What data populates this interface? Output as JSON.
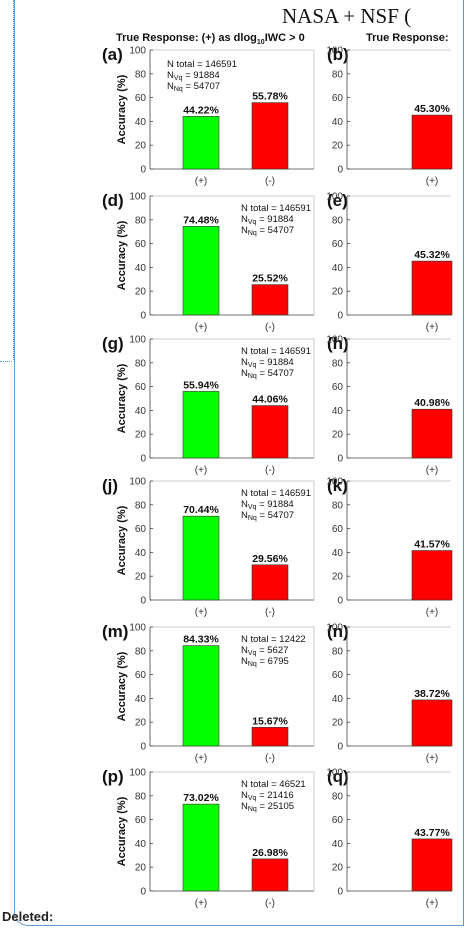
{
  "header": {
    "title": "NASA + NSF (",
    "left_column_title": "True Response: (+) as dlog",
    "left_column_title_sub": "10",
    "left_column_title_end": "IWC > 0",
    "right_column_title": "True Response:"
  },
  "footer": {
    "deleted_label": "Deleted:"
  },
  "colors": {
    "positive": "#00ff00",
    "negative": "#ff0000",
    "frame": "#5b9bd5"
  },
  "chart_data": [
    {
      "panel": "(a)",
      "type": "bar",
      "categories": [
        "(+)",
        "(-)"
      ],
      "values": [
        44.22,
        55.78
      ],
      "value_labels": [
        "44.22%",
        "55.78%"
      ],
      "ylabel": "Accuracy (%)",
      "ylim": [
        0,
        100
      ],
      "yticks": [
        0,
        20,
        40,
        60,
        80,
        100
      ],
      "annotation": [
        "N total = 146591",
        "N",
        "Vq",
        " = 91884",
        "N",
        "Nq",
        " = 54707"
      ]
    },
    {
      "panel": "(b)",
      "type": "bar",
      "categories": [
        "(+)"
      ],
      "values": [
        45.3
      ],
      "value_labels": [
        "45.30%"
      ],
      "ylim": [
        0,
        100
      ],
      "yticks": [
        0,
        20,
        40,
        60,
        80,
        100
      ]
    },
    {
      "panel": "(d)",
      "type": "bar",
      "categories": [
        "(+)",
        "(-)"
      ],
      "values": [
        74.48,
        25.52
      ],
      "value_labels": [
        "74.48%",
        "25.52%"
      ],
      "ylabel": "Accuracy (%)",
      "ylim": [
        0,
        100
      ],
      "yticks": [
        0,
        20,
        40,
        60,
        80,
        100
      ],
      "annotation": [
        "N total = 146591",
        "N",
        "Vq",
        " = 91884",
        "N",
        "Nq",
        " = 54707"
      ]
    },
    {
      "panel": "(e)",
      "type": "bar",
      "categories": [
        "(+)"
      ],
      "values": [
        45.32
      ],
      "value_labels": [
        "45.32%"
      ],
      "ylim": [
        0,
        100
      ],
      "yticks": [
        0,
        20,
        40,
        60,
        80,
        100
      ]
    },
    {
      "panel": "(g)",
      "type": "bar",
      "categories": [
        "(+)",
        "(-)"
      ],
      "values": [
        55.94,
        44.06
      ],
      "value_labels": [
        "55.94%",
        "44.06%"
      ],
      "ylabel": "Accuracy (%)",
      "ylim": [
        0,
        100
      ],
      "yticks": [
        0,
        20,
        40,
        60,
        80,
        100
      ],
      "annotation": [
        "N total = 146591",
        "N",
        "Vq",
        " = 91884",
        "N",
        "Nq",
        " = 54707"
      ]
    },
    {
      "panel": "(h)",
      "type": "bar",
      "categories": [
        "(+)"
      ],
      "values": [
        40.98
      ],
      "value_labels": [
        "40.98%"
      ],
      "ylim": [
        0,
        100
      ],
      "yticks": [
        0,
        20,
        40,
        60,
        80,
        100
      ]
    },
    {
      "panel": "(j)",
      "type": "bar",
      "categories": [
        "(+)",
        "(-)"
      ],
      "values": [
        70.44,
        29.56
      ],
      "value_labels": [
        "70.44%",
        "29.56%"
      ],
      "ylabel": "Accuracy (%)",
      "ylim": [
        0,
        100
      ],
      "yticks": [
        0,
        20,
        40,
        60,
        80,
        100
      ],
      "annotation": [
        "N total = 146591",
        "N",
        "Vq",
        " = 91884",
        "N",
        "Nq",
        " = 54707"
      ]
    },
    {
      "panel": "(k)",
      "type": "bar",
      "categories": [
        "(+)"
      ],
      "values": [
        41.57
      ],
      "value_labels": [
        "41.57%"
      ],
      "ylim": [
        0,
        100
      ],
      "yticks": [
        0,
        20,
        40,
        60,
        80,
        100
      ]
    },
    {
      "panel": "(m)",
      "type": "bar",
      "categories": [
        "(+)",
        "(-)"
      ],
      "values": [
        84.33,
        15.67
      ],
      "value_labels": [
        "84.33%",
        "15.67%"
      ],
      "ylabel": "Accuracy (%)",
      "ylim": [
        0,
        100
      ],
      "yticks": [
        0,
        20,
        40,
        60,
        80,
        100
      ],
      "annotation": [
        "N total = 12422",
        "N",
        "Vq",
        " = 5627",
        "N",
        "Nq",
        " = 6795"
      ]
    },
    {
      "panel": "(n)",
      "type": "bar",
      "categories": [
        "(+)"
      ],
      "values": [
        38.72
      ],
      "value_labels": [
        "38.72%"
      ],
      "ylim": [
        0,
        100
      ],
      "yticks": [
        0,
        20,
        40,
        60,
        80,
        100
      ]
    },
    {
      "panel": "(p)",
      "type": "bar",
      "categories": [
        "(+)",
        "(-)"
      ],
      "values": [
        73.02,
        26.98
      ],
      "value_labels": [
        "73.02%",
        "26.98%"
      ],
      "ylabel": "Accuracy (%)",
      "ylim": [
        0,
        100
      ],
      "yticks": [
        0,
        20,
        40,
        60,
        80,
        100
      ],
      "annotation": [
        "N total = 46521",
        "N",
        "Vq",
        " = 21416",
        "N",
        "Nq",
        " = 25105"
      ]
    },
    {
      "panel": "(q)",
      "type": "bar",
      "categories": [
        "(+)"
      ],
      "values": [
        43.77
      ],
      "value_labels": [
        "43.77%"
      ],
      "ylim": [
        0,
        100
      ],
      "yticks": [
        0,
        20,
        40,
        60,
        80,
        100
      ]
    }
  ]
}
